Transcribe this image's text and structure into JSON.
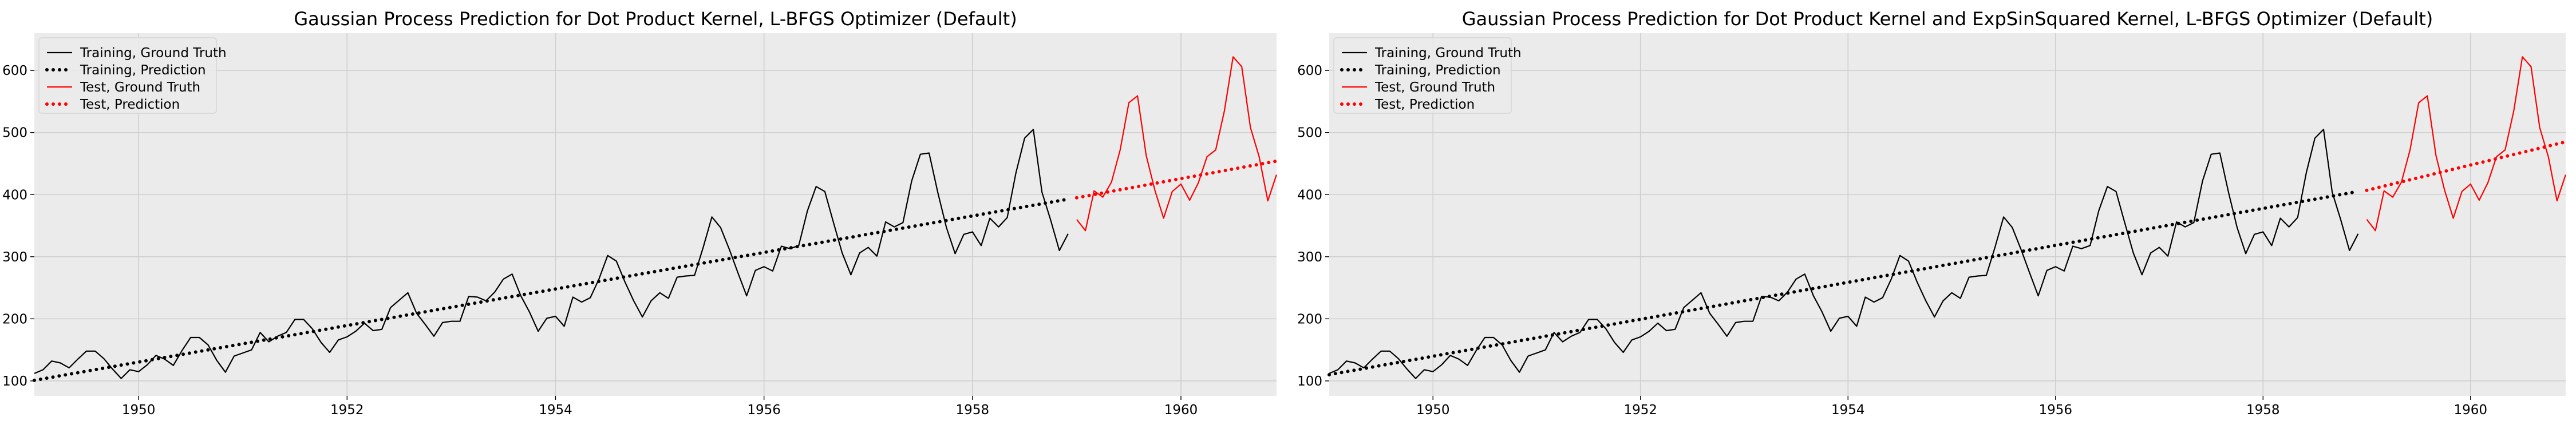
{
  "chart_data": [
    {
      "type": "line",
      "title": "Gaussian Process Prediction for Dot Product Kernel, L-BFGS Optimizer (Default)",
      "xlabel": "",
      "ylabel": "",
      "xlim": [
        1949.0,
        1960.917
      ],
      "ylim": [
        76,
        660
      ],
      "xticks": [
        1950,
        1952,
        1954,
        1956,
        1958,
        1960
      ],
      "yticks": [
        100,
        200,
        300,
        400,
        500,
        600
      ],
      "grid": true,
      "legend_position": "upper-left",
      "train_x_start": [
        1949,
        1
      ],
      "test_x_start": [
        1959,
        1
      ],
      "series": [
        {
          "name": "Training, Ground Truth",
          "role": "train_truth",
          "color": "#000000",
          "style": "solid",
          "values": [
            112,
            118,
            132,
            129,
            121,
            135,
            148,
            148,
            136,
            119,
            104,
            118,
            115,
            126,
            141,
            135,
            125,
            149,
            170,
            170,
            158,
            133,
            114,
            140,
            145,
            150,
            178,
            163,
            172,
            178,
            199,
            199,
            184,
            162,
            146,
            166,
            171,
            180,
            193,
            181,
            183,
            218,
            230,
            242,
            209,
            191,
            172,
            194,
            196,
            196,
            236,
            235,
            229,
            243,
            264,
            272,
            237,
            211,
            180,
            201,
            204,
            188,
            235,
            227,
            234,
            264,
            302,
            293,
            259,
            229,
            203,
            229,
            242,
            233,
            267,
            269,
            270,
            315,
            364,
            347,
            312,
            274,
            237,
            278,
            284,
            277,
            317,
            313,
            318,
            374,
            413,
            405,
            355,
            306,
            271,
            306,
            315,
            301,
            356,
            348,
            355,
            422,
            465,
            467,
            404,
            347,
            305,
            336,
            340,
            318,
            362,
            348,
            363,
            435,
            491,
            505,
            404,
            359,
            310,
            337
          ]
        },
        {
          "name": "Training, Prediction",
          "role": "train_pred",
          "color": "#000000",
          "style": "dotted",
          "values": [
            101,
            392.7
          ]
        },
        {
          "name": "Test, Ground Truth",
          "role": "test_truth",
          "color": "#ff0000",
          "style": "solid",
          "values": [
            360,
            342,
            406,
            396,
            420,
            472,
            548,
            559,
            463,
            407,
            362,
            405,
            417,
            391,
            419,
            461,
            472,
            535,
            622,
            606,
            508,
            461,
            390,
            432
          ]
        },
        {
          "name": "Test, Prediction",
          "role": "test_pred",
          "color": "#ff0000",
          "style": "dotted",
          "values": [
            395,
            454
          ]
        }
      ]
    },
    {
      "type": "line",
      "title": "Gaussian Process Prediction for Dot Product Kernel and ExpSinSquared Kernel, L-BFGS Optimizer (Default)",
      "xlabel": "",
      "ylabel": "",
      "xlim": [
        1949.0,
        1960.917
      ],
      "ylim": [
        76,
        660
      ],
      "xticks": [
        1950,
        1952,
        1954,
        1956,
        1958,
        1960
      ],
      "yticks": [
        100,
        200,
        300,
        400,
        500,
        600
      ],
      "grid": true,
      "legend_position": "upper-left",
      "train_x_start": [
        1949,
        1
      ],
      "test_x_start": [
        1959,
        1
      ],
      "series": [
        {
          "name": "Training, Ground Truth",
          "role": "train_truth",
          "color": "#000000",
          "style": "solid",
          "values": [
            112,
            118,
            132,
            129,
            121,
            135,
            148,
            148,
            136,
            119,
            104,
            118,
            115,
            126,
            141,
            135,
            125,
            149,
            170,
            170,
            158,
            133,
            114,
            140,
            145,
            150,
            178,
            163,
            172,
            178,
            199,
            199,
            184,
            162,
            146,
            166,
            171,
            180,
            193,
            181,
            183,
            218,
            230,
            242,
            209,
            191,
            172,
            194,
            196,
            196,
            236,
            235,
            229,
            243,
            264,
            272,
            237,
            211,
            180,
            201,
            204,
            188,
            235,
            227,
            234,
            264,
            302,
            293,
            259,
            229,
            203,
            229,
            242,
            233,
            267,
            269,
            270,
            315,
            364,
            347,
            312,
            274,
            237,
            278,
            284,
            277,
            317,
            313,
            318,
            374,
            413,
            405,
            355,
            306,
            271,
            306,
            315,
            301,
            356,
            348,
            355,
            422,
            465,
            467,
            404,
            347,
            305,
            336,
            340,
            318,
            362,
            348,
            363,
            435,
            491,
            505,
            404,
            359,
            310,
            337
          ]
        },
        {
          "name": "Training, Prediction",
          "role": "train_pred",
          "color": "#000000",
          "style": "dotted",
          "values": [
            110,
            405
          ]
        },
        {
          "name": "Test, Ground Truth",
          "role": "test_truth",
          "color": "#ff0000",
          "style": "solid",
          "values": [
            360,
            342,
            406,
            396,
            420,
            472,
            548,
            559,
            463,
            407,
            362,
            405,
            417,
            391,
            419,
            461,
            472,
            535,
            622,
            606,
            508,
            461,
            390,
            432
          ]
        },
        {
          "name": "Test, Prediction",
          "role": "test_pred",
          "color": "#ff0000",
          "style": "dotted",
          "values": [
            407,
            485
          ]
        }
      ]
    }
  ]
}
